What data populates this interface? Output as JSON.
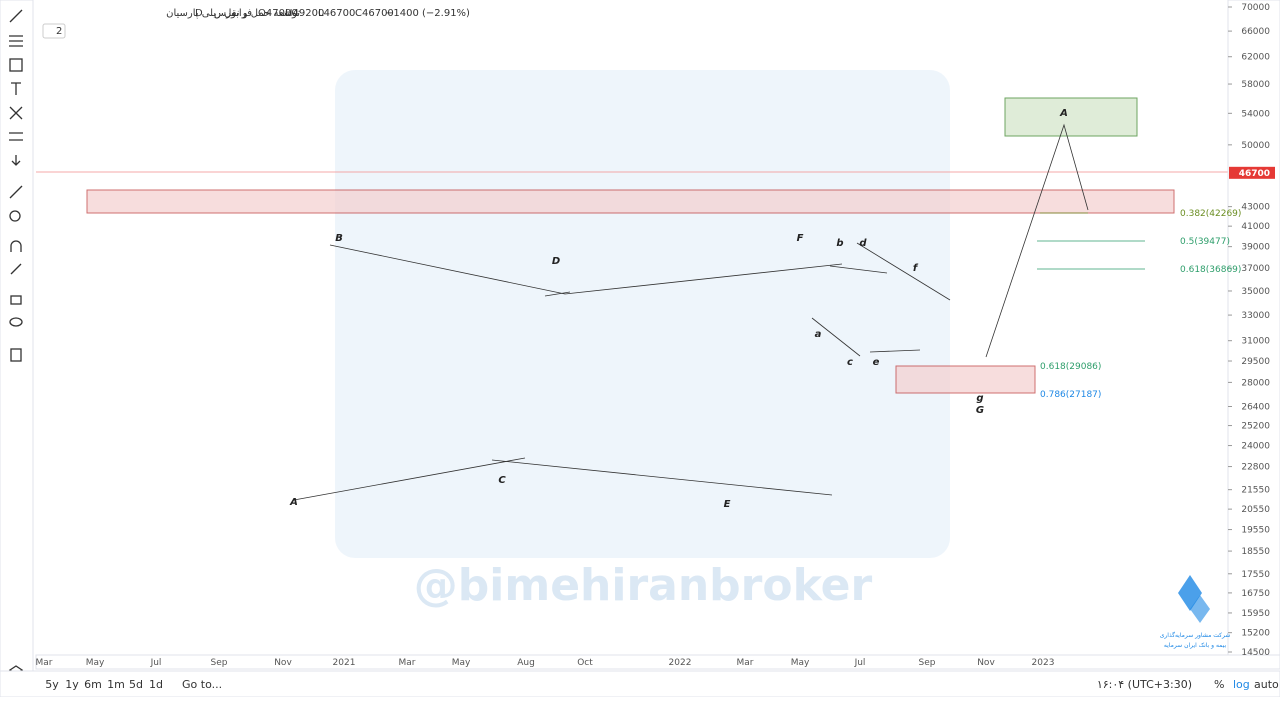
{
  "header": {
    "symbol": "توسعه حمل و نقل ریلی پارسیان",
    "interval": "D",
    "exchange": "فرابورس",
    "open": "O47000",
    "high": "H49200",
    "low": "L46700",
    "close": "C46700",
    "change": "−1400 (−2.91%)",
    "indicators_toggle": "2"
  },
  "price_axis": {
    "ylim": [
      14394,
      71206
    ],
    "log": true,
    "ticks": [
      70000,
      66000,
      62000,
      58000,
      54000,
      50000,
      43000,
      41000,
      39000,
      37000,
      35000,
      33000,
      31000,
      29500,
      28000,
      26400,
      25200,
      24000,
      22800,
      21550,
      20550,
      19550,
      18550,
      17550,
      16750,
      15950,
      15200,
      14500
    ],
    "last_price": 46700
  },
  "time_axis": [
    "Mar",
    "May",
    "Jul",
    "Sep",
    "Nov",
    "2021",
    "Mar",
    "May",
    "Aug",
    "Oct",
    "2022",
    "Mar",
    "May",
    "Jul",
    "Sep",
    "Nov",
    "2023"
  ],
  "fib_labels": [
    "0.382(42269)",
    "0.5(39477)",
    "0.618(36869)",
    "0.618(29086)",
    "0.786(27187)"
  ],
  "wave_labels": [
    "A",
    "B",
    "C",
    "D",
    "E",
    "F",
    "b",
    "d",
    "f",
    "a",
    "c",
    "e",
    "g",
    "G",
    "A"
  ],
  "watermark": "@bimehiranbroker",
  "logo_text": [
    "شرکت مشاور سرمایه‌گذاری",
    "بیمه و بانک ایران سرمایه"
  ],
  "bottom_bar": {
    "ranges": [
      "5y",
      "1y",
      "6m",
      "1m",
      "5d",
      "1d"
    ],
    "goto": "Go to...",
    "clock": "۱۶:۰۴ (UTC+3:30)",
    "percent": "%",
    "log": "log",
    "auto": "auto"
  }
}
